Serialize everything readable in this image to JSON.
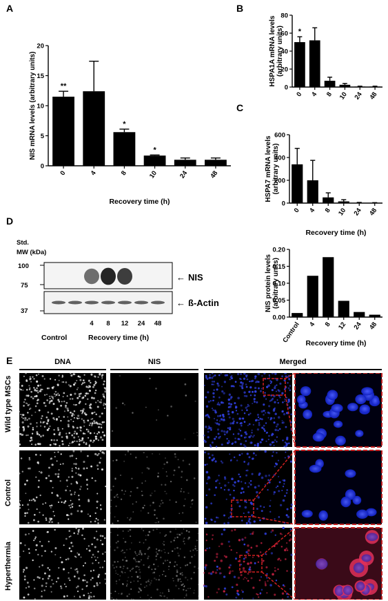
{
  "panels": {
    "A": "A",
    "B": "B",
    "C": "C",
    "D": "D",
    "E": "E"
  },
  "chart_data": [
    {
      "id": "A",
      "type": "bar",
      "categories": [
        "0",
        "4",
        "8",
        "10",
        "24",
        "48"
      ],
      "values": [
        11.5,
        12.4,
        5.6,
        1.7,
        1.0,
        1.0
      ],
      "errors": [
        0.9,
        5.0,
        0.5,
        0.1,
        0.3,
        0.3
      ],
      "annotations": [
        "**",
        "",
        "*",
        "*",
        "",
        ""
      ],
      "xlabel": "Recovery time (h)",
      "ylabel": "NIS mRNA levels (arbitrary units)",
      "ylim": [
        0,
        20
      ],
      "yticks": [
        0,
        5,
        10,
        15,
        20
      ]
    },
    {
      "id": "B",
      "type": "bar",
      "categories": [
        "0",
        "4",
        "8",
        "10",
        "24",
        "48"
      ],
      "values": [
        50,
        52,
        7,
        2.5,
        0.5,
        0.5
      ],
      "errors": [
        6,
        14,
        4,
        1.5,
        0.5,
        0.5
      ],
      "annotations": [
        "*",
        "",
        "",
        "",
        "",
        ""
      ],
      "xlabel": "Recovery time (h)",
      "ylabel": "HSPA1A mRNA levels (arbitrary units)",
      "ylim": [
        0,
        80
      ],
      "yticks": [
        0,
        20,
        40,
        60,
        80
      ]
    },
    {
      "id": "C",
      "type": "bar",
      "categories": [
        "0",
        "4",
        "8",
        "10",
        "24",
        "48"
      ],
      "values": [
        340,
        200,
        50,
        15,
        3,
        2
      ],
      "errors": [
        140,
        175,
        40,
        15,
        3,
        2
      ],
      "annotations": [
        "",
        "",
        "",
        "",
        "",
        ""
      ],
      "xlabel": "Recovery time (h)",
      "ylabel": "HSPA7 mRNA levels (arbitrary units)",
      "ylim": [
        0,
        600
      ],
      "yticks": [
        0,
        200,
        400,
        600
      ]
    },
    {
      "id": "D",
      "type": "bar",
      "categories": [
        "Control",
        "4",
        "8",
        "12",
        "24",
        "48"
      ],
      "values": [
        0.012,
        0.122,
        0.177,
        0.048,
        0.015,
        0.007
      ],
      "xlabel": "Recovery time (h)",
      "ylabel": "NIS protein levels (arbitrary units)",
      "ylim": [
        0,
        0.2
      ],
      "yticks": [
        "0.00",
        "0.05",
        "0.10",
        "0.15",
        "0.20"
      ]
    }
  ],
  "blot": {
    "std_label": "Std.",
    "mw_label": "MW (kDa)",
    "markers": [
      "100",
      "75",
      "37"
    ],
    "bands": [
      "NIS",
      "ß-Actin"
    ],
    "arrow": "←",
    "lanes": [
      "4",
      "8",
      "12",
      "24",
      "48"
    ],
    "control": "Control",
    "recovery": "Recovery time (h)"
  },
  "micro": {
    "columns": [
      "DNA",
      "NIS",
      "Merged"
    ],
    "rows": [
      "Wild type MSCs",
      "Control",
      "Hyperthermia"
    ]
  }
}
